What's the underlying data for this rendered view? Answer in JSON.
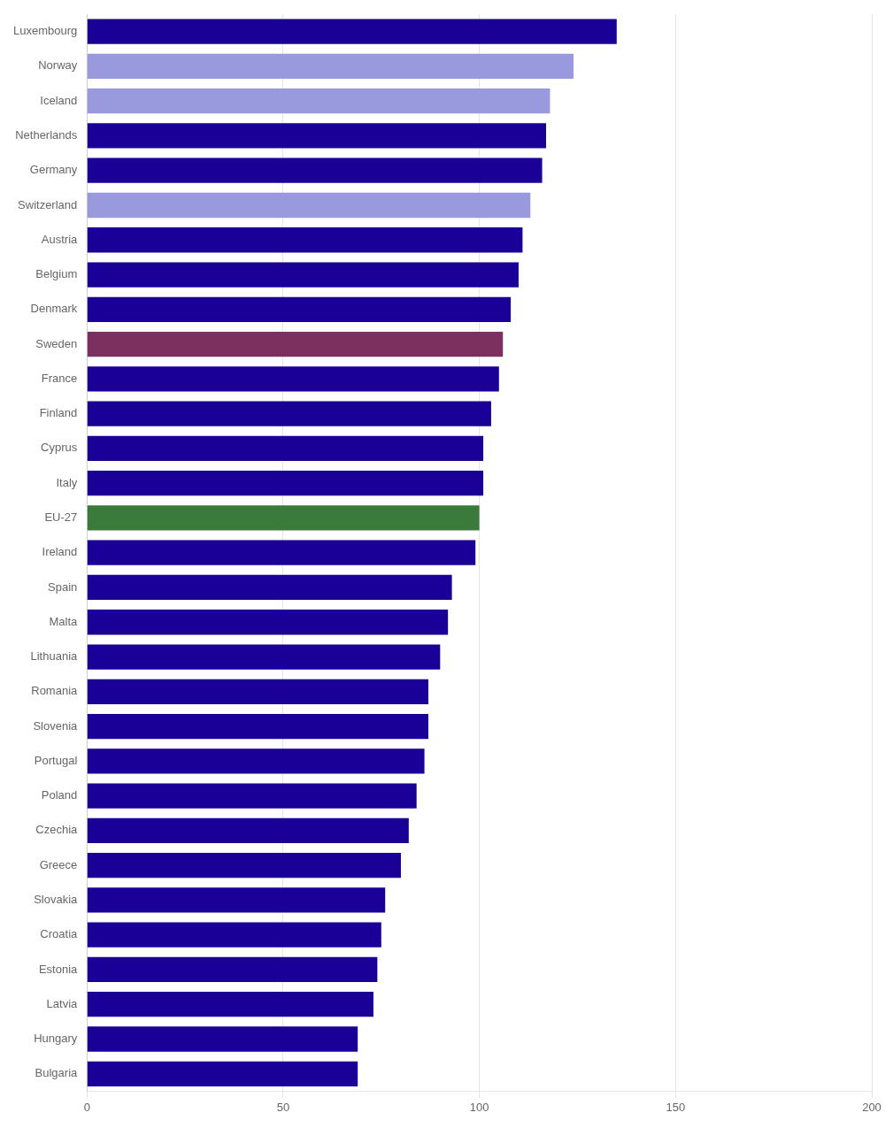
{
  "chart_data": {
    "type": "bar",
    "orientation": "horizontal",
    "categories": [
      "Luxembourg",
      "Norway",
      "Iceland",
      "Netherlands",
      "Germany",
      "Switzerland",
      "Austria",
      "Belgium",
      "Denmark",
      "Sweden",
      "France",
      "Finland",
      "Cyprus",
      "Italy",
      "EU-27",
      "Ireland",
      "Spain",
      "Malta",
      "Lithuania",
      "Romania",
      "Slovenia",
      "Portugal",
      "Poland",
      "Czechia",
      "Greece",
      "Slovakia",
      "Croatia",
      "Estonia",
      "Latvia",
      "Hungary",
      "Bulgaria"
    ],
    "values": [
      135,
      124,
      118,
      117,
      116,
      113,
      111,
      110,
      108,
      106,
      105,
      103,
      101,
      101,
      100,
      99,
      93,
      92,
      90,
      87,
      87,
      86,
      84,
      82,
      80,
      76,
      75,
      74,
      73,
      69,
      69
    ],
    "colors": [
      "#1a0096",
      "#9999dd",
      "#9999dd",
      "#1a0096",
      "#1a0096",
      "#9999dd",
      "#1a0096",
      "#1a0096",
      "#1a0096",
      "#7b3060",
      "#1a0096",
      "#1a0096",
      "#1a0096",
      "#1a0096",
      "#3a7a3a",
      "#1a0096",
      "#1a0096",
      "#1a0096",
      "#1a0096",
      "#1a0096",
      "#1a0096",
      "#1a0096",
      "#1a0096",
      "#1a0096",
      "#1a0096",
      "#1a0096",
      "#1a0096",
      "#1a0096",
      "#1a0096",
      "#1a0096",
      "#1a0096"
    ],
    "xlim": [
      0,
      200
    ],
    "xticks": [
      0,
      50,
      100,
      150,
      200
    ],
    "grid": true
  }
}
